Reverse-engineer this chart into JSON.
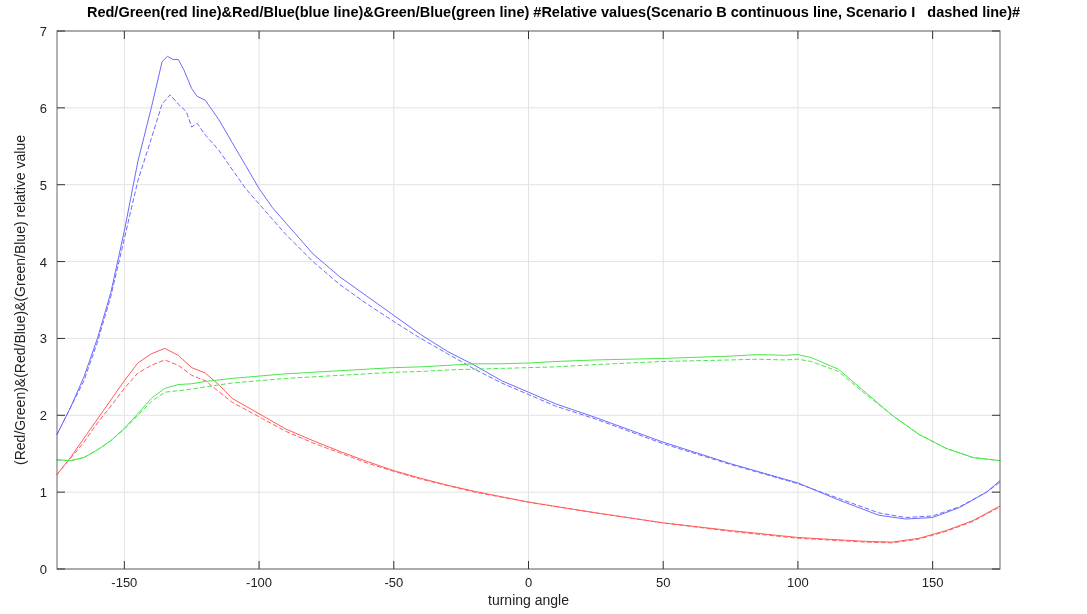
{
  "chart_data": {
    "type": "line",
    "title": "Red/Green(red line)&Red/Blue(blue line)&Green/Blue(green line) #Relative values(Scenario B continuous line, Scenario I   dashed line)#",
    "xlabel": "turning angle",
    "ylabel": "(Red/Green)&(Red/Blue)&(Green/Blue) relative value",
    "xlim": [
      -175,
      175
    ],
    "ylim": [
      0,
      7
    ],
    "xticks": [
      -150,
      -100,
      -50,
      0,
      50,
      100,
      150
    ],
    "yticks": [
      0,
      1,
      2,
      3,
      4,
      5,
      6,
      7
    ],
    "grid": true,
    "marker": "none",
    "series": [
      {
        "color": "#6b6bff",
        "line_style": "solid",
        "x": [
          -175,
          -170,
          -165,
          -160,
          -155,
          -150,
          -145,
          -140,
          -136,
          -134,
          -132,
          -130,
          -128,
          -125,
          -123,
          -120,
          -115,
          -110,
          -105,
          -100,
          -95,
          -90,
          -85,
          -80,
          -70,
          -60,
          -50,
          -40,
          -30,
          -20,
          -10,
          0,
          10,
          25,
          50,
          75,
          100,
          115,
          130,
          140,
          150,
          160,
          170,
          175
        ],
        "values": [
          1.75,
          2.1,
          2.5,
          3.0,
          3.6,
          4.4,
          5.3,
          6.0,
          6.6,
          6.67,
          6.63,
          6.63,
          6.5,
          6.25,
          6.15,
          6.1,
          5.85,
          5.55,
          5.25,
          4.95,
          4.7,
          4.5,
          4.3,
          4.1,
          3.8,
          3.55,
          3.3,
          3.05,
          2.83,
          2.65,
          2.45,
          2.3,
          2.15,
          1.97,
          1.65,
          1.37,
          1.12,
          0.9,
          0.7,
          0.65,
          0.67,
          0.8,
          1.0,
          1.15
        ]
      },
      {
        "color": "#6b6bff",
        "line_style": "dashed",
        "x": [
          -175,
          -165,
          -160,
          -155,
          -150,
          -145,
          -140,
          -136,
          -133,
          -130,
          -127,
          -125,
          -123,
          -120,
          -115,
          -110,
          -105,
          -100,
          -95,
          -90,
          -80,
          -70,
          -60,
          -50,
          -40,
          -30,
          -20,
          -10,
          0,
          10,
          25,
          50,
          75,
          100,
          115,
          130,
          140,
          150,
          160,
          170,
          175
        ],
        "values": [
          1.75,
          2.45,
          2.95,
          3.55,
          4.3,
          5.05,
          5.6,
          6.05,
          6.17,
          6.05,
          5.95,
          5.75,
          5.8,
          5.65,
          5.45,
          5.2,
          4.95,
          4.75,
          4.55,
          4.35,
          4.0,
          3.7,
          3.45,
          3.22,
          3.0,
          2.8,
          2.6,
          2.42,
          2.27,
          2.12,
          1.95,
          1.63,
          1.36,
          1.11,
          0.92,
          0.73,
          0.67,
          0.69,
          0.81,
          1.0,
          1.13
        ]
      },
      {
        "color": "#ff5c5c",
        "line_style": "solid",
        "x": [
          -175,
          -170,
          -165,
          -160,
          -155,
          -150,
          -145,
          -140,
          -135,
          -130,
          -125,
          -120,
          -115,
          -110,
          -100,
          -90,
          -80,
          -70,
          -60,
          -50,
          -40,
          -30,
          -20,
          -10,
          0,
          25,
          50,
          75,
          100,
          125,
          135,
          145,
          155,
          165,
          175
        ],
        "values": [
          1.23,
          1.45,
          1.7,
          1.95,
          2.2,
          2.45,
          2.68,
          2.8,
          2.87,
          2.78,
          2.62,
          2.55,
          2.4,
          2.22,
          2.02,
          1.82,
          1.67,
          1.53,
          1.4,
          1.28,
          1.18,
          1.09,
          1.01,
          0.94,
          0.87,
          0.73,
          0.6,
          0.5,
          0.41,
          0.36,
          0.35,
          0.4,
          0.5,
          0.63,
          0.82
        ]
      },
      {
        "color": "#ff5c5c",
        "line_style": "dashed",
        "x": [
          -175,
          -165,
          -160,
          -155,
          -150,
          -145,
          -140,
          -135,
          -130,
          -125,
          -120,
          -110,
          -100,
          -90,
          -80,
          -70,
          -60,
          -50,
          -40,
          -20,
          0,
          25,
          50,
          75,
          100,
          125,
          135,
          145,
          155,
          165,
          175
        ],
        "values": [
          1.23,
          1.65,
          1.9,
          2.12,
          2.35,
          2.55,
          2.65,
          2.72,
          2.65,
          2.52,
          2.45,
          2.17,
          1.98,
          1.79,
          1.64,
          1.51,
          1.38,
          1.27,
          1.17,
          1.0,
          0.87,
          0.73,
          0.6,
          0.49,
          0.4,
          0.35,
          0.34,
          0.39,
          0.49,
          0.62,
          0.81
        ]
      },
      {
        "color": "#4ce64c",
        "line_style": "solid",
        "x": [
          -175,
          -170,
          -165,
          -160,
          -155,
          -150,
          -145,
          -140,
          -135,
          -130,
          -125,
          -120,
          -110,
          -100,
          -90,
          -80,
          -70,
          -60,
          -50,
          -40,
          -30,
          -20,
          -10,
          0,
          10,
          25,
          50,
          75,
          85,
          95,
          100,
          105,
          115,
          125,
          135,
          145,
          155,
          165,
          175
        ],
        "values": [
          1.42,
          1.41,
          1.45,
          1.55,
          1.67,
          1.83,
          2.02,
          2.22,
          2.35,
          2.4,
          2.41,
          2.44,
          2.48,
          2.51,
          2.54,
          2.56,
          2.58,
          2.6,
          2.62,
          2.63,
          2.65,
          2.67,
          2.67,
          2.68,
          2.7,
          2.72,
          2.74,
          2.77,
          2.79,
          2.78,
          2.79,
          2.75,
          2.6,
          2.3,
          2.0,
          1.75,
          1.57,
          1.45,
          1.41
        ]
      },
      {
        "color": "#4ce64c",
        "line_style": "dashed",
        "x": [
          -175,
          -170,
          -165,
          -160,
          -155,
          -150,
          -145,
          -140,
          -135,
          -130,
          -125,
          -120,
          -110,
          -100,
          -90,
          -80,
          -70,
          -60,
          -50,
          -40,
          -30,
          -20,
          -10,
          0,
          10,
          25,
          50,
          75,
          85,
          95,
          100,
          105,
          115,
          125,
          135,
          145,
          155,
          165,
          175
        ],
        "values": [
          1.42,
          1.41,
          1.45,
          1.55,
          1.67,
          1.82,
          2.0,
          2.18,
          2.3,
          2.32,
          2.34,
          2.37,
          2.42,
          2.45,
          2.48,
          2.5,
          2.52,
          2.54,
          2.56,
          2.57,
          2.59,
          2.6,
          2.61,
          2.62,
          2.63,
          2.66,
          2.7,
          2.72,
          2.73,
          2.72,
          2.73,
          2.7,
          2.57,
          2.28,
          2.0,
          1.75,
          1.57,
          1.45,
          1.41
        ]
      }
    ]
  }
}
